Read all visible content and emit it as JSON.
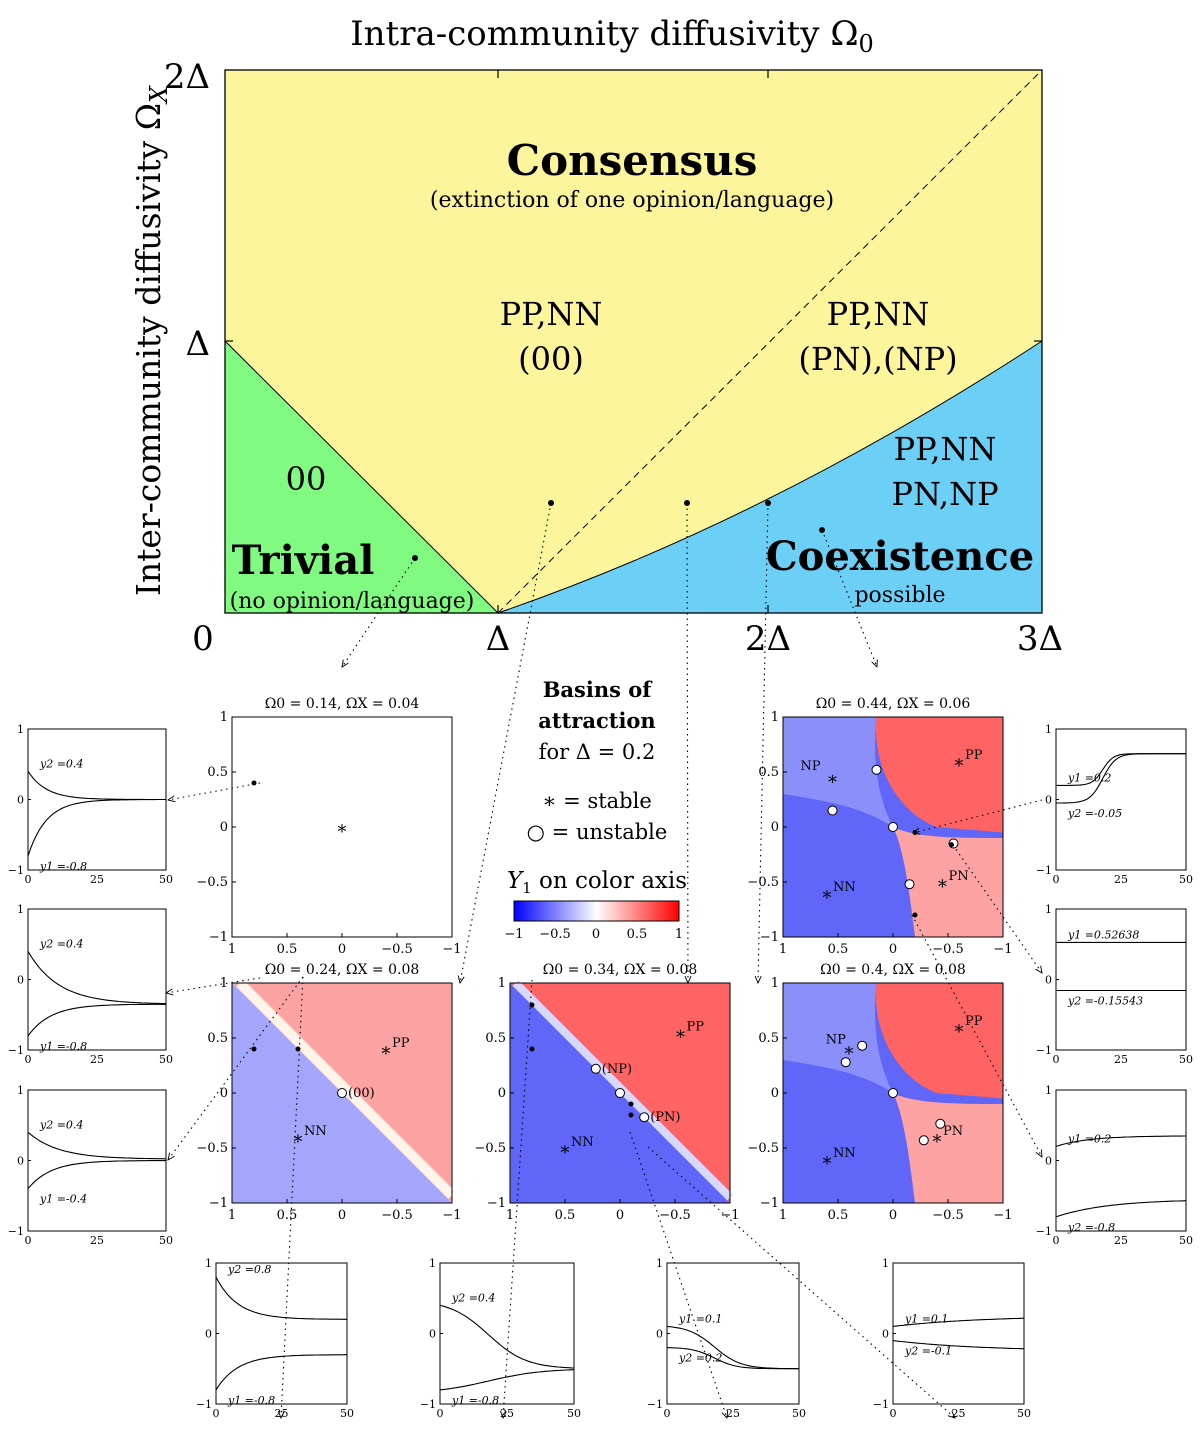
{
  "main_title": "Intra-community diffusivity Ω",
  "main_title_sub": "0",
  "ylabel": "Inter-community diffusivity Ω",
  "ylabel_sub": "X",
  "y_ticks": [
    "2Δ",
    "Δ"
  ],
  "x_ticks": [
    "0",
    "Δ",
    "2Δ",
    "3Δ"
  ],
  "regions": {
    "consensus_title": "Consensus",
    "consensus_sub": "(extinction of one opinion/language)",
    "c1_line1": "PP,NN",
    "c1_line2": "(00)",
    "c2_line1": "PP,NN",
    "c2_line2": "(PN),(NP)",
    "trivial_fixed": "00",
    "trivial_title": "Trivial",
    "trivial_sub": "(no opinion/language)",
    "coex_line1": "PP,NN",
    "coex_line2": "PN,NP",
    "coex_title": "Coexistence",
    "coex_sub": "possible"
  },
  "colors": {
    "consensus": "#fdf59b",
    "trivial": "#80fa80",
    "coexistence": "#6ccff6",
    "blue": "#0000ff",
    "red": "#ff0000"
  },
  "legend": {
    "line1": "Basins of",
    "line2": "attraction",
    "line3": "for Δ = 0.2",
    "stable": "∗ = stable",
    "unstable": "○ = unstable",
    "color_axis": "Y",
    "color_axis_sub": "1",
    "color_axis_rest": " on color axis",
    "colorbar_ticks": [
      "−1",
      "−0.5",
      "0",
      "0.5",
      "1"
    ]
  },
  "basin_panels": [
    {
      "title": "Ω0 = 0.14, ΩX = 0.04",
      "labels": []
    },
    {
      "title": "Ω0 = 0.44, ΩX = 0.06",
      "labels": [
        "NP",
        "PP",
        "NN",
        "PN"
      ]
    },
    {
      "title": "Ω0 = 0.24, ΩX = 0.08",
      "labels": [
        "PP",
        "(00)",
        "NN"
      ]
    },
    {
      "title": "Ω0 = 0.34, ΩX = 0.08",
      "labels": [
        "PP",
        "(NP)",
        "(PN)",
        "NN"
      ]
    },
    {
      "title": "Ω0 = 0.4, ΩX = 0.08",
      "labels": [
        "PP",
        "NP",
        "PN",
        "NN"
      ]
    }
  ],
  "basin_ticks": [
    "1",
    "0.5",
    "0",
    "−0.5",
    "−1"
  ],
  "time_ticks": [
    "0",
    "25",
    "50"
  ],
  "small_yticks": [
    "1",
    "0",
    "−1"
  ],
  "trajectories": [
    {
      "y2": "y2 =0.4",
      "y1": "y1 =-0.8"
    },
    {
      "y2": "y2 =0.4",
      "y1": "y1 =-0.8"
    },
    {
      "y2": "y2 =0.4",
      "y1": "y1 =-0.4"
    },
    {
      "y1": "y1 =0.2",
      "y2": "y2 =-0.05"
    },
    {
      "y1": "y1 =0.52638",
      "y2": "y2 =-0.15543"
    },
    {
      "y1": "y1 =0.2",
      "y2": "y2 =-0.8"
    },
    {
      "y2": "y2 =0.8",
      "y1": "y1 =-0.8"
    },
    {
      "y2": "y2 =0.4",
      "y1": "y1 =-0.8"
    },
    {
      "y1": "y1 =0.1",
      "y2": "y2 =0.2"
    },
    {
      "y1": "y1 =0.1",
      "y2": "y2 =-0.1"
    }
  ]
}
